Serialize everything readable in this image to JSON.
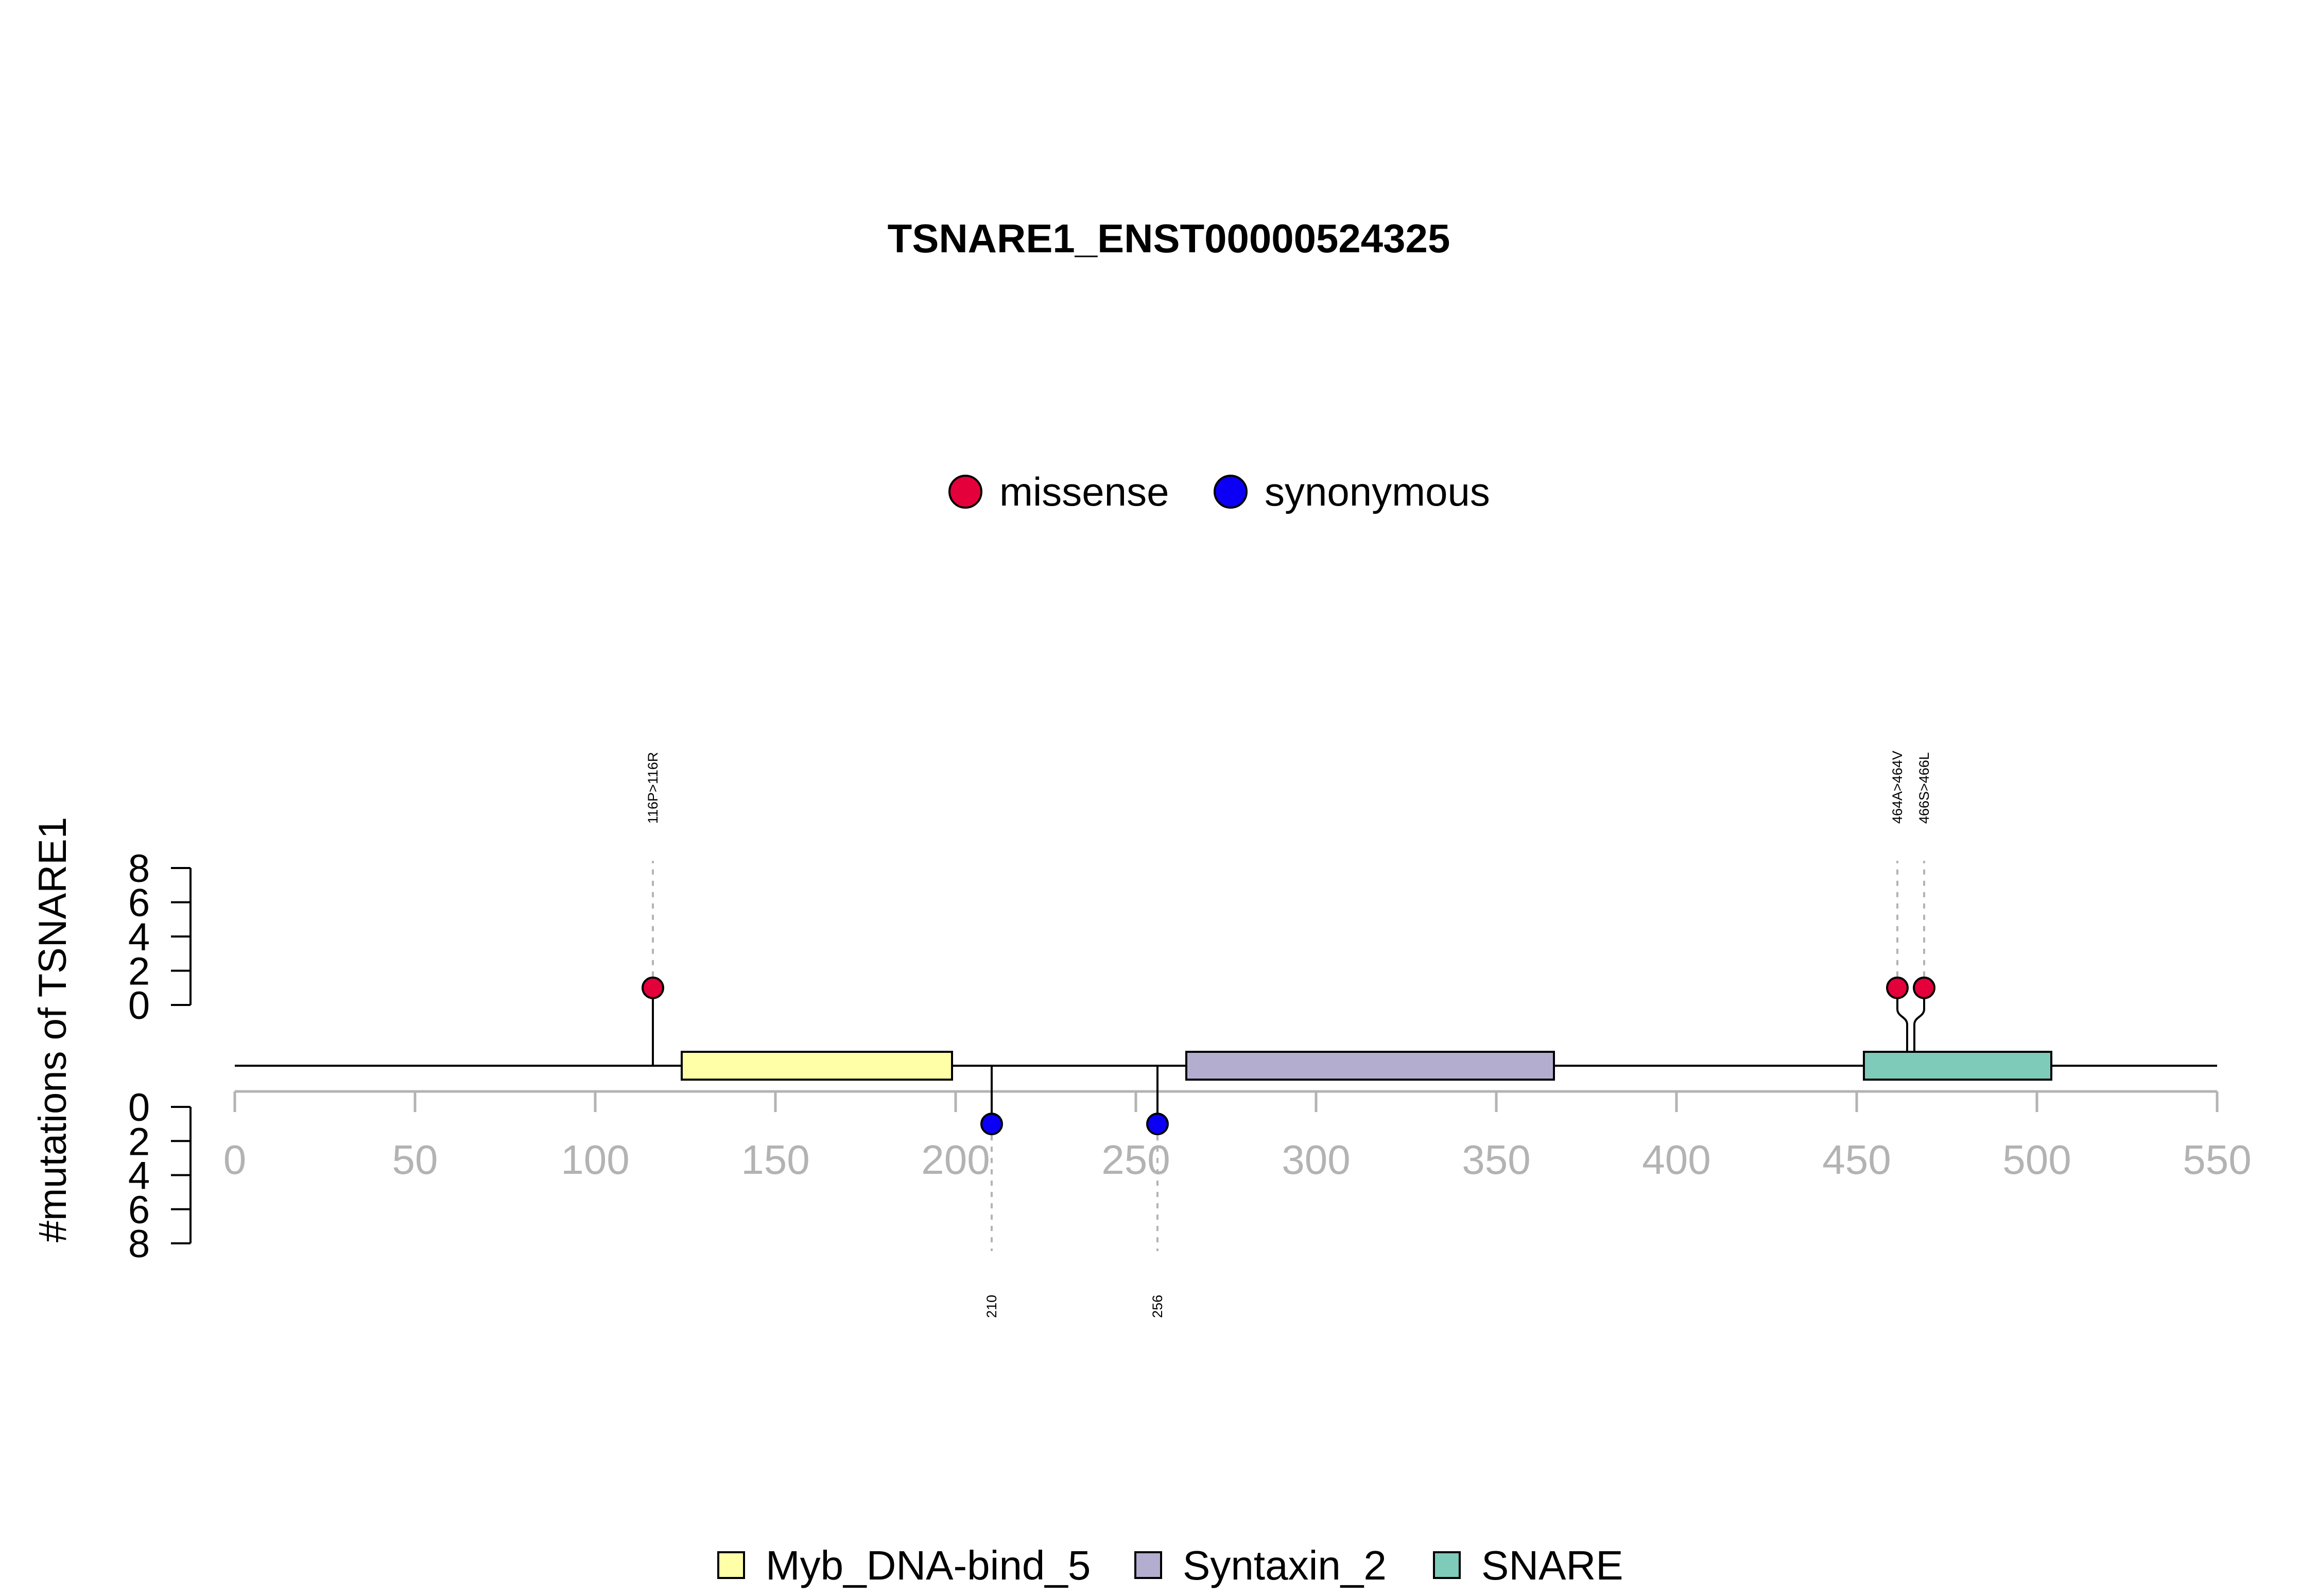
{
  "chart_data": {
    "type": "lollipop",
    "title": "TSNARE1_ENST00000524325",
    "ylabel": "#mutations of TSNARE1",
    "xlim": [
      0,
      550
    ],
    "x_ticks": [
      "0",
      "50",
      "100",
      "150",
      "200",
      "250",
      "300",
      "350",
      "400",
      "450",
      "500",
      "550"
    ],
    "upper_y_ticks": [
      "0",
      "2",
      "4",
      "6",
      "8"
    ],
    "lower_y_ticks": [
      "0",
      "2",
      "4",
      "6",
      "8"
    ],
    "ylim": [
      0,
      8
    ],
    "mutation_legend": [
      {
        "name": "missense",
        "color": "#e3003b"
      },
      {
        "name": "synonymous",
        "color": "#0b00f5"
      }
    ],
    "domain_legend": [
      {
        "name": "Myb_DNA-bind_5",
        "color": "#ffffa8"
      },
      {
        "name": "Syntaxin_2",
        "color": "#b3aed0"
      },
      {
        "name": "SNARE",
        "color": "#7ecbba"
      }
    ],
    "domains": [
      {
        "name": "Myb_DNA-bind_5",
        "start": 124,
        "end": 199
      },
      {
        "name": "Syntaxin_2",
        "start": 264,
        "end": 366
      },
      {
        "name": "SNARE",
        "start": 452,
        "end": 504
      }
    ],
    "mutations": [
      {
        "pos": 116,
        "count": 1,
        "type": "missense",
        "label": "116P>116R",
        "side": "up"
      },
      {
        "pos": 464,
        "count": 1,
        "type": "missense",
        "label": "464A>464V",
        "side": "up"
      },
      {
        "pos": 466,
        "count": 1,
        "type": "missense",
        "label": "466S>466L",
        "side": "up"
      },
      {
        "pos": 210,
        "count": 1,
        "type": "synonymous",
        "label": "210",
        "side": "down"
      },
      {
        "pos": 256,
        "count": 1,
        "type": "synonymous",
        "label": "256",
        "side": "down"
      }
    ]
  }
}
